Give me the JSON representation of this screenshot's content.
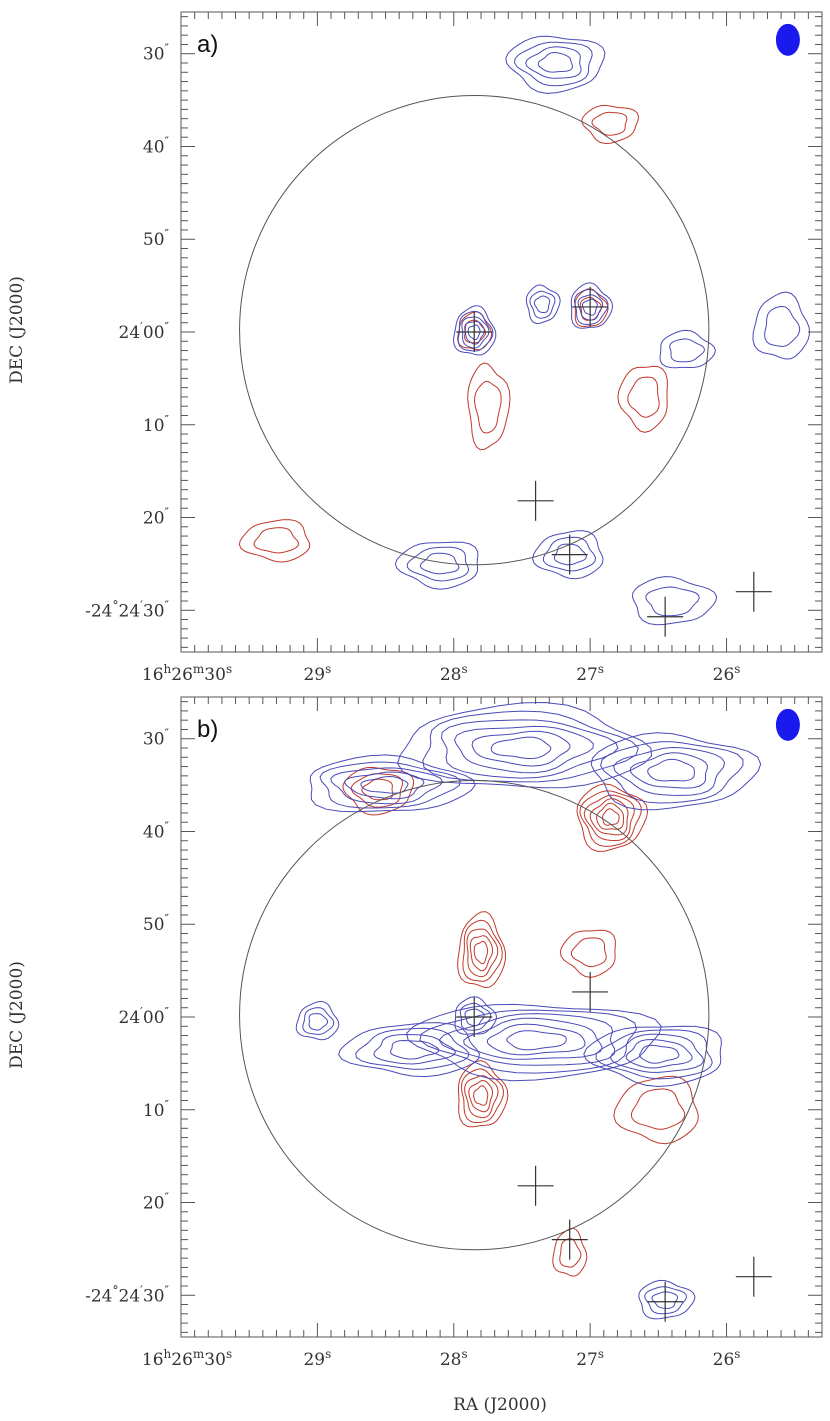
{
  "colors": {
    "blue_contour": "#4a4ab8",
    "red_contour": "#c0392b",
    "beam": "#1a1aee",
    "frame": "#555555",
    "text": "#333333"
  },
  "axes": {
    "xlabel": "RA (J2000)",
    "ylabel": "DEC (J2000)",
    "x_ticks": [
      {
        "label_h": "16",
        "label_m": "26",
        "label_s": "30",
        "sec": 30.0,
        "full": true
      },
      {
        "label": "29",
        "sec": 29.0
      },
      {
        "label": "28",
        "sec": 28.0
      },
      {
        "label": "27",
        "sec": 27.0
      },
      {
        "label": "26",
        "sec": 26.0
      }
    ],
    "y_ticks": [
      {
        "label": "30",
        "dec": 30
      },
      {
        "label": "40",
        "dec": 40
      },
      {
        "label": "50",
        "dec": 50
      },
      {
        "label_d": "24",
        "label_m": "00",
        "dec": 60,
        "degmin": true
      },
      {
        "label": "10",
        "dec": 70
      },
      {
        "label": "20",
        "dec": 80
      },
      {
        "label_d": "-24",
        "label_m": "24",
        "label_s": "30",
        "dec": 90,
        "full": true
      }
    ]
  },
  "chart_data": [
    {
      "type": "contour",
      "panel_label": "a)",
      "xlim_ra_seconds": [
        30.0,
        25.3
      ],
      "ylim_dec_arcsec_offset": [
        25.5,
        94.5
      ],
      "beam": {
        "ra_s": 25.55,
        "dec": 28.5
      },
      "primary_beam_circle": {
        "ra_s": 27.85,
        "dec": 59.8,
        "radius_arcsec": 25.3
      },
      "crosses": [
        {
          "ra_s": 27.85,
          "dec": 60.0
        },
        {
          "ra_s": 27.0,
          "dec": 57.3
        },
        {
          "ra_s": 27.4,
          "dec": 78.2
        },
        {
          "ra_s": 27.15,
          "dec": 84.0
        },
        {
          "ra_s": 26.45,
          "dec": 90.7
        },
        {
          "ra_s": 25.8,
          "dec": 88.0
        }
      ],
      "blue_sources": [
        {
          "ra_s": 27.85,
          "dec": 60.0,
          "rx": 0.15,
          "ry": 2.6,
          "levels": 5
        },
        {
          "ra_s": 27.0,
          "dec": 57.3,
          "rx": 0.15,
          "ry": 2.4,
          "levels": 4
        },
        {
          "ra_s": 27.35,
          "dec": 57.0,
          "rx": 0.12,
          "ry": 2.0,
          "levels": 3
        },
        {
          "ra_s": 27.25,
          "dec": 31.0,
          "rx": 0.35,
          "ry": 3.0,
          "levels": 4
        },
        {
          "ra_s": 28.1,
          "dec": 85.0,
          "rx": 0.3,
          "ry": 2.5,
          "levels": 3
        },
        {
          "ra_s": 27.15,
          "dec": 84.0,
          "rx": 0.25,
          "ry": 2.5,
          "levels": 3
        },
        {
          "ra_s": 25.6,
          "dec": 59.5,
          "rx": 0.2,
          "ry": 3.5,
          "levels": 2
        },
        {
          "ra_s": 26.3,
          "dec": 62.0,
          "rx": 0.2,
          "ry": 2.0,
          "levels": 2
        },
        {
          "ra_s": 26.4,
          "dec": 89.0,
          "rx": 0.3,
          "ry": 2.5,
          "levels": 2
        }
      ],
      "red_sources": [
        {
          "ra_s": 27.85,
          "dec": 60.0,
          "rx": 0.12,
          "ry": 2.0,
          "levels": 2
        },
        {
          "ra_s": 27.0,
          "dec": 57.5,
          "rx": 0.12,
          "ry": 2.0,
          "levels": 2
        },
        {
          "ra_s": 27.75,
          "dec": 68.0,
          "rx": 0.15,
          "ry": 4.5,
          "levels": 2
        },
        {
          "ra_s": 26.85,
          "dec": 37.5,
          "rx": 0.2,
          "ry": 2.0,
          "levels": 2
        },
        {
          "ra_s": 26.6,
          "dec": 67.0,
          "rx": 0.18,
          "ry": 3.5,
          "levels": 2
        },
        {
          "ra_s": 29.3,
          "dec": 82.5,
          "rx": 0.25,
          "ry": 2.2,
          "levels": 2
        }
      ]
    },
    {
      "type": "contour",
      "panel_label": "b)",
      "xlim_ra_seconds": [
        30.0,
        25.3
      ],
      "ylim_dec_arcsec_offset": [
        25.5,
        94.5
      ],
      "beam": {
        "ra_s": 25.55,
        "dec": 28.5
      },
      "primary_beam_circle": {
        "ra_s": 27.85,
        "dec": 59.8,
        "radius_arcsec": 25.3
      },
      "crosses": [
        {
          "ra_s": 27.85,
          "dec": 60.0
        },
        {
          "ra_s": 27.0,
          "dec": 57.3
        },
        {
          "ra_s": 27.4,
          "dec": 78.2
        },
        {
          "ra_s": 27.15,
          "dec": 84.0
        },
        {
          "ra_s": 26.45,
          "dec": 90.7
        },
        {
          "ra_s": 25.8,
          "dec": 88.0
        }
      ],
      "blue_sources": [
        {
          "ra_s": 27.5,
          "dec": 31.0,
          "rx": 0.9,
          "ry": 4.5,
          "levels": 6
        },
        {
          "ra_s": 28.5,
          "dec": 35.0,
          "rx": 0.6,
          "ry": 3.0,
          "levels": 5
        },
        {
          "ra_s": 26.4,
          "dec": 33.5,
          "rx": 0.6,
          "ry": 4.0,
          "levels": 5
        },
        {
          "ra_s": 27.4,
          "dec": 62.5,
          "rx": 0.9,
          "ry": 4.0,
          "levels": 6
        },
        {
          "ra_s": 26.5,
          "dec": 64.0,
          "rx": 0.5,
          "ry": 3.2,
          "levels": 5
        },
        {
          "ra_s": 28.3,
          "dec": 63.5,
          "rx": 0.5,
          "ry": 2.8,
          "levels": 4
        },
        {
          "ra_s": 29.0,
          "dec": 60.5,
          "rx": 0.15,
          "ry": 2.0,
          "levels": 3
        },
        {
          "ra_s": 27.85,
          "dec": 60.0,
          "rx": 0.15,
          "ry": 2.0,
          "levels": 3
        },
        {
          "ra_s": 26.45,
          "dec": 90.5,
          "rx": 0.2,
          "ry": 2.0,
          "levels": 3
        }
      ],
      "red_sources": [
        {
          "ra_s": 27.8,
          "dec": 53.0,
          "rx": 0.17,
          "ry": 4.0,
          "levels": 5
        },
        {
          "ra_s": 27.8,
          "dec": 68.5,
          "rx": 0.18,
          "ry": 3.5,
          "levels": 5
        },
        {
          "ra_s": 26.85,
          "dec": 38.5,
          "rx": 0.25,
          "ry": 3.5,
          "levels": 6
        },
        {
          "ra_s": 28.55,
          "dec": 35.5,
          "rx": 0.25,
          "ry": 2.5,
          "levels": 3
        },
        {
          "ra_s": 27.0,
          "dec": 53.0,
          "rx": 0.2,
          "ry": 2.5,
          "levels": 2
        },
        {
          "ra_s": 26.5,
          "dec": 70.0,
          "rx": 0.3,
          "ry": 3.5,
          "levels": 2
        },
        {
          "ra_s": 27.15,
          "dec": 85.5,
          "rx": 0.12,
          "ry": 2.5,
          "levels": 2
        }
      ]
    }
  ]
}
